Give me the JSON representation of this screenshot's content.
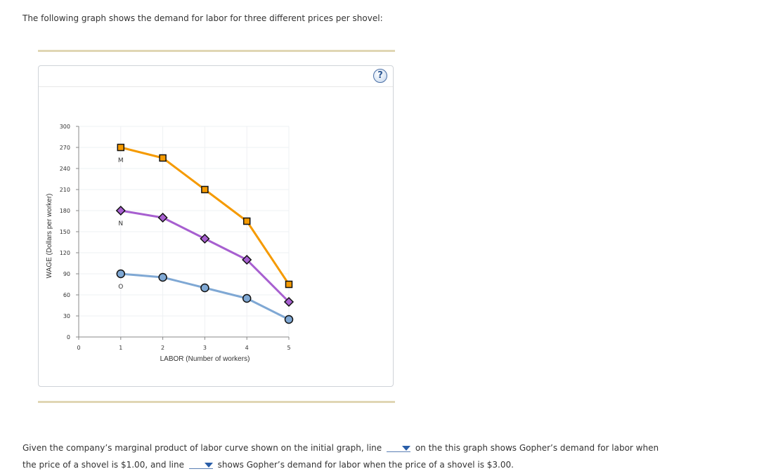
{
  "intro_text": "The following graph shows the demand for labor for three different prices per shovel:",
  "help_button": "?",
  "colors": {
    "rule": "#e0d6b4",
    "series_M": "#f59a00",
    "series_N": "#a75fd0",
    "series_O": "#7fa8d4",
    "grid": "#eef0f3",
    "axis": "#888888"
  },
  "chart_data": {
    "type": "line",
    "xlabel": "LABOR (Number of workers)",
    "ylabel": "WAGE (Dollars per worker)",
    "xlim": [
      0,
      5
    ],
    "ylim": [
      0,
      300
    ],
    "xticks": [
      0,
      1,
      2,
      3,
      4,
      5
    ],
    "yticks": [
      0,
      30,
      60,
      90,
      120,
      150,
      180,
      210,
      240,
      270,
      300
    ],
    "grid": true,
    "series": [
      {
        "name": "M",
        "marker": "square",
        "color": "#f59a00",
        "marker_fill": "#f59a00",
        "x": [
          1,
          2,
          3,
          4,
          5
        ],
        "y": [
          270,
          255,
          210,
          165,
          75
        ]
      },
      {
        "name": "N",
        "marker": "diamond",
        "color": "#a75fd0",
        "marker_fill": "#a75fd0",
        "x": [
          1,
          2,
          3,
          4,
          5
        ],
        "y": [
          180,
          170,
          140,
          110,
          50
        ]
      },
      {
        "name": "O",
        "marker": "circle",
        "color": "#7fa8d4",
        "marker_fill": "#7fa8d4",
        "x": [
          1,
          2,
          3,
          4,
          5
        ],
        "y": [
          90,
          85,
          70,
          55,
          25
        ]
      }
    ]
  },
  "question": {
    "line1_before": "Given the company’s marginal product of labor curve shown on the initial graph, line",
    "line1_after": "on the this graph shows Gopher’s demand for labor when",
    "line2_before": "the price of a shovel is $1.00, and line",
    "line2_after": "shows Gopher’s demand for labor when the price of a shovel is $3.00.",
    "dropdown1_value": "",
    "dropdown2_value": ""
  }
}
